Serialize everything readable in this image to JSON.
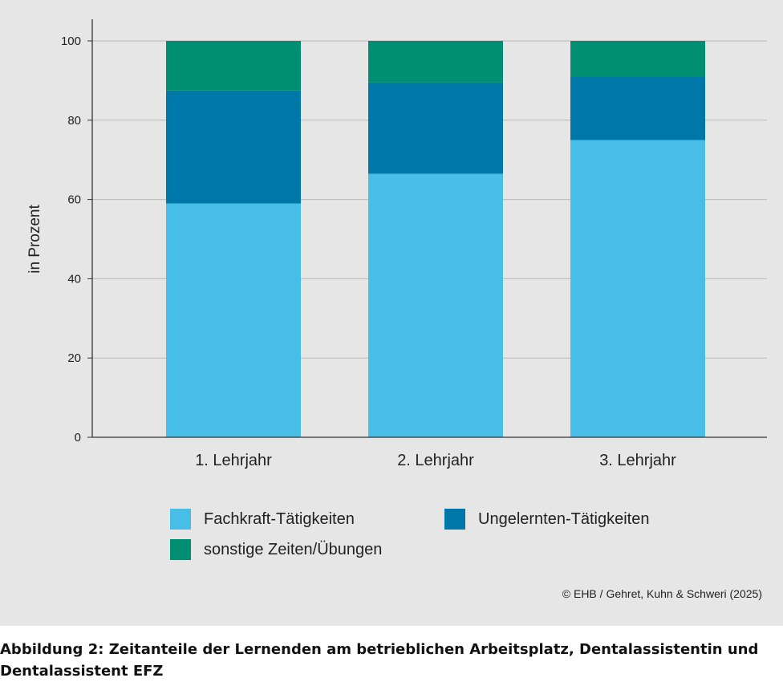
{
  "chart_data": {
    "type": "bar",
    "stacked": true,
    "categories": [
      "1. Lehrjahr",
      "2. Lehrjahr",
      "3. Lehrjahr"
    ],
    "series": [
      {
        "name": "Fachkraft-Tätigkeiten",
        "color": "#48bde8",
        "values": [
          59,
          66.5,
          75
        ]
      },
      {
        "name": "Ungelernten-Tätigkeiten",
        "color": "#0077a9",
        "values": [
          28.5,
          23,
          16
        ]
      },
      {
        "name": "sonstige Zeiten/Übungen",
        "color": "#008f73",
        "values": [
          12.5,
          10.5,
          9
        ]
      }
    ],
    "ylabel": "in Prozent",
    "xlabel": "",
    "ylim": [
      0,
      100
    ],
    "yticks": [
      0,
      20,
      40,
      60,
      80,
      100
    ],
    "grid": true,
    "legend_position": "bottom"
  },
  "source_note": "© EHB / Gehret, Kuhn & Schweri (2025)",
  "caption_line1": "Abbildung 2: Zeitanteile der Lernenden am betrieblichen Arbeitsplatz, Dentalassistentin und",
  "caption_line2": "Dentalassistent EFZ"
}
